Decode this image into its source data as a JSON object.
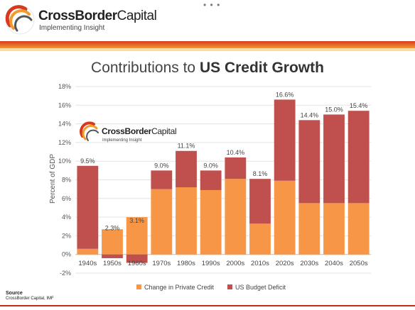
{
  "header": {
    "brand_bold": "CrossBorder",
    "brand_rest": "Capital",
    "tagline": "Implementing Insight",
    "menu_dots": "• • •"
  },
  "watermark": {
    "brand_bold": "CrossBorder",
    "brand_rest": "Capital",
    "tagline": "Implementing Insight"
  },
  "title_plain": "Contributions to ",
  "title_bold": "US Credit Growth",
  "footer": {
    "source_label": "Source",
    "source_text": "CrossBorder Capital, IMF"
  },
  "colors": {
    "private_credit": "#F79646",
    "budget_deficit": "#C0504D",
    "brand_red": "#D63A1E"
  },
  "chart_data": {
    "type": "bar",
    "stacked": true,
    "categories": [
      "1940s",
      "1950s",
      "1960s",
      "1970s",
      "1980s",
      "1990s",
      "2000s",
      "2010s",
      "2020s",
      "2030s",
      "2040s",
      "2050s"
    ],
    "series": [
      {
        "name": "Change in Private Credit",
        "values": [
          0.6,
          2.7,
          4.0,
          7.0,
          7.2,
          6.9,
          8.1,
          3.3,
          7.9,
          5.5,
          5.5,
          5.5
        ]
      },
      {
        "name": "US Budget Deficit",
        "values": [
          8.9,
          -0.4,
          -0.9,
          2.0,
          3.9,
          2.1,
          2.3,
          4.8,
          8.7,
          8.9,
          9.5,
          9.9
        ]
      }
    ],
    "totals": [
      9.5,
      2.3,
      3.1,
      9.0,
      11.1,
      9.0,
      10.4,
      8.1,
      16.6,
      14.4,
      15.0,
      15.4
    ],
    "total_labels": [
      "9.5%",
      "2.3%",
      "3.1%",
      "9.0%",
      "11.1%",
      "9.0%",
      "10.4%",
      "8.1%",
      "16.6%",
      "14.4%",
      "15.0%",
      "15.4%"
    ],
    "ylabel": "Percent of GDP",
    "xlabel": "",
    "ylim": [
      -2,
      18
    ],
    "yticks": [
      -2,
      0,
      2,
      4,
      6,
      8,
      10,
      12,
      14,
      16,
      18
    ],
    "ytick_labels": [
      "-2%",
      "0%",
      "2%",
      "4%",
      "6%",
      "8%",
      "10%",
      "12%",
      "14%",
      "16%",
      "18%"
    ],
    "grid": true,
    "legend_position": "bottom"
  }
}
